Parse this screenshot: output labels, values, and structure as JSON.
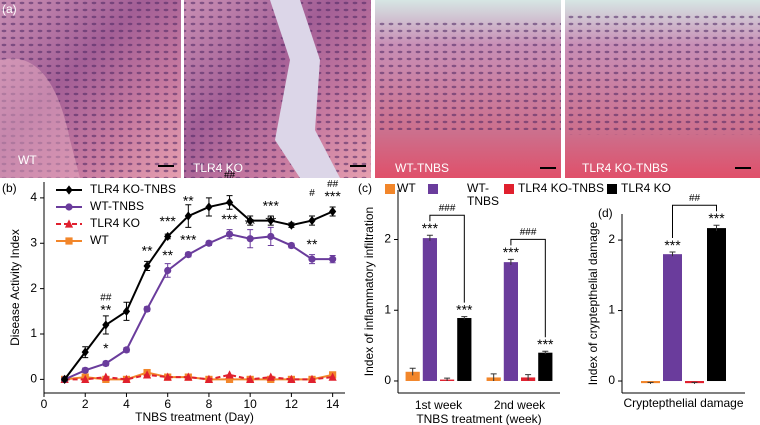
{
  "figure": {
    "panel_labels": [
      "(a)",
      "(b)",
      "(c)",
      "(d)"
    ],
    "image_labels": [
      "WT",
      "TLR4 KO",
      "WT-TNBS",
      "TLR4 KO-TNBS"
    ]
  },
  "chart_data": [
    {
      "type": "line",
      "xlabel": "TNBS treatment (Day)",
      "ylabel": "Disease Activity Index",
      "x": [
        1,
        2,
        3,
        4,
        5,
        6,
        7,
        8,
        9,
        10,
        11,
        12,
        13,
        14
      ],
      "xlim": [
        0,
        14.6
      ],
      "xticks": [
        0,
        2,
        4,
        6,
        8,
        10,
        12,
        14
      ],
      "ylim": [
        -0.3,
        4.35
      ],
      "yticks": [
        0,
        1,
        2,
        3,
        4
      ],
      "legend": "upper left",
      "series": [
        {
          "name": "TLR4 KO-TNBS",
          "color": "#000000",
          "marker": "diamond",
          "dashed": false,
          "values": [
            0,
            0.6,
            1.2,
            1.5,
            2.5,
            3.15,
            3.6,
            3.8,
            3.9,
            3.5,
            3.5,
            3.4,
            3.5,
            3.7
          ],
          "errors": [
            0.03,
            0.12,
            0.2,
            0.2,
            0.1,
            0.05,
            0.25,
            0.2,
            0.15,
            0.1,
            0.1,
            0.05,
            0.1,
            0.1
          ],
          "significance": [
            null,
            null,
            "**",
            null,
            "**",
            "***",
            "**",
            null,
            null,
            null,
            "***",
            null,
            null,
            "***"
          ],
          "comparison": [
            null,
            null,
            "##",
            null,
            null,
            null,
            null,
            null,
            "##",
            null,
            null,
            null,
            "#",
            "##"
          ]
        },
        {
          "name": "WT-TNBS",
          "color": "#6a3c9c",
          "marker": "circle",
          "dashed": false,
          "values": [
            0,
            0.2,
            0.35,
            0.65,
            1.55,
            2.4,
            2.75,
            3.0,
            3.2,
            3.1,
            3.15,
            2.95,
            2.65,
            2.65
          ],
          "errors": [
            0.03,
            0.05,
            0.05,
            0.05,
            0.05,
            0.15,
            0.05,
            0.05,
            0.1,
            0.2,
            0.2,
            0.05,
            0.1,
            0.08
          ],
          "significance": [
            null,
            null,
            "*",
            null,
            null,
            "**",
            "***",
            null,
            "***",
            "**",
            "**",
            null,
            "**",
            null
          ]
        },
        {
          "name": "TLR4 KO",
          "color": "#e0202e",
          "marker": "triangle",
          "dashed": true,
          "values": [
            0,
            0,
            0.05,
            0,
            0.1,
            0.05,
            0.05,
            0,
            0.1,
            0,
            0.05,
            0,
            0,
            0.05
          ]
        },
        {
          "name": "WT",
          "color": "#f2862a",
          "marker": "square",
          "dashed": false,
          "values": [
            0,
            0.05,
            0,
            0,
            0.15,
            0.05,
            0.05,
            0,
            0,
            0,
            0,
            0,
            0,
            0.1
          ]
        }
      ]
    },
    {
      "type": "bar",
      "xlabel": "TNBS treatment (week)",
      "ylabel": "Index of  inflammatory infiltration",
      "categories": [
        "1st week",
        "2nd week"
      ],
      "ylim": [
        -0.17,
        2.7
      ],
      "yticks": [
        0,
        1,
        2
      ],
      "legend": "top",
      "comparisons": [
        "###",
        "###"
      ],
      "series": [
        {
          "name": "WT",
          "color": "#f2862a",
          "values": [
            0.13,
            0.05
          ],
          "errors": [
            0.05,
            0.05
          ],
          "significance": [
            null,
            null
          ]
        },
        {
          "name": "WT-TNBS",
          "color": "#6a3c9c",
          "values": [
            2.02,
            1.68
          ],
          "errors": [
            0.04,
            0.04
          ],
          "significance": [
            "***",
            "***"
          ]
        },
        {
          "name": "TLR4 KO-TNBS",
          "color": "#e0202e",
          "values": [
            0.02,
            0.05
          ],
          "errors": [
            0.02,
            0.04
          ],
          "significance": [
            null,
            null
          ]
        },
        {
          "name": "TLR4 KO",
          "color": "#000000",
          "values": [
            0.89,
            0.4
          ],
          "errors": [
            0.02,
            0.02
          ],
          "significance": [
            "***",
            "***"
          ]
        }
      ]
    },
    {
      "type": "bar",
      "xlabel": "Cryptepthelial damage",
      "ylabel": "Index of cryptepthelial damage",
      "categories": [
        null
      ],
      "ylim": [
        -0.17,
        2.37
      ],
      "yticks": [
        0,
        1,
        2
      ],
      "comparisons": [
        "##"
      ],
      "series": [
        {
          "color": "#f2862a",
          "values": [
            -0.03
          ],
          "errors": [
            0.01
          ],
          "significance": [
            null
          ]
        },
        {
          "color": "#6a3c9c",
          "values": [
            1.8
          ],
          "errors": [
            0.03
          ],
          "significance": [
            "***"
          ]
        },
        {
          "color": "#e0202e",
          "values": [
            -0.03
          ],
          "errors": [
            0.01
          ],
          "significance": [
            null
          ]
        },
        {
          "color": "#000000",
          "values": [
            2.17
          ],
          "errors": [
            0.04
          ],
          "significance": [
            "***"
          ]
        }
      ]
    }
  ]
}
